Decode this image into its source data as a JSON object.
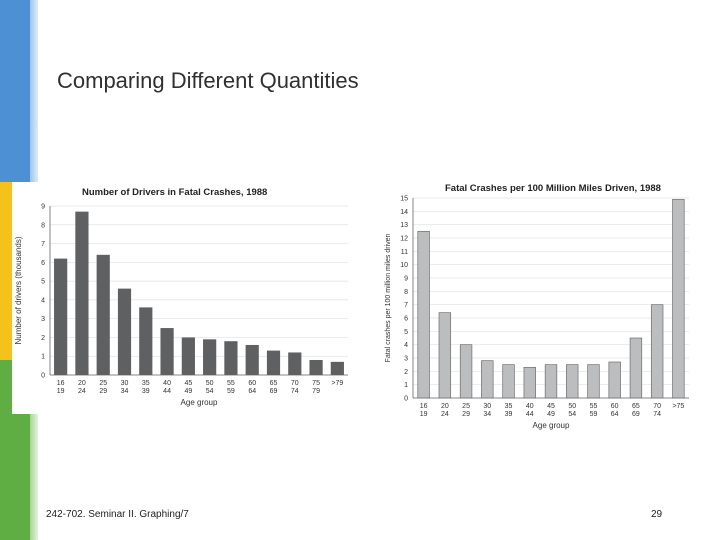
{
  "slide": {
    "title": "Comparing Different Quantities",
    "footer_left": "242-702. Seminar II. Graphing/7",
    "page_number": "29"
  },
  "colors": {
    "band_blue": "#4d91d4",
    "band_yellow": "#f4c21b",
    "band_green": "#5fae43",
    "bar_dark": "#5f6062",
    "bar_light": "#bcbdbf"
  },
  "chart_data": [
    {
      "type": "bar",
      "title": "Number of Drivers in Fatal Crashes, 1988",
      "xlabel": "Age group",
      "ylabel": "Number of drivers (thousands)",
      "ylim": [
        0,
        9
      ],
      "yticks": [
        "0",
        "1",
        "2",
        "3",
        "4",
        "5",
        "6",
        "7",
        "8",
        "9"
      ],
      "categories": [
        [
          "16",
          "19"
        ],
        [
          "20",
          "24"
        ],
        [
          "25",
          "29"
        ],
        [
          "30",
          "34"
        ],
        [
          "35",
          "39"
        ],
        [
          "40",
          "44"
        ],
        [
          "45",
          "49"
        ],
        [
          "50",
          "54"
        ],
        [
          "55",
          "59"
        ],
        [
          "60",
          "64"
        ],
        [
          "65",
          "69"
        ],
        [
          "70",
          "74"
        ],
        [
          "75",
          "79"
        ],
        [
          ">79",
          ""
        ]
      ],
      "values": [
        6.2,
        8.7,
        6.4,
        4.6,
        3.6,
        2.5,
        2.0,
        1.9,
        1.8,
        1.6,
        1.3,
        1.2,
        0.8,
        0.7
      ],
      "grid": true
    },
    {
      "type": "bar",
      "title": "Fatal Crashes per 100 Million Miles Driven, 1988",
      "xlabel": "Age group",
      "ylabel": "Fatal crashes per 100 million miles driven",
      "ylim": [
        0,
        15
      ],
      "yticks": [
        "0",
        "1",
        "2",
        "3",
        "4",
        "5",
        "6",
        "7",
        "8",
        "9",
        "10",
        "11",
        "12",
        "13",
        "14",
        "15"
      ],
      "categories": [
        [
          "16",
          "19"
        ],
        [
          "20",
          "24"
        ],
        [
          "25",
          "29"
        ],
        [
          "30",
          "34"
        ],
        [
          "35",
          "39"
        ],
        [
          "40",
          "44"
        ],
        [
          "45",
          "49"
        ],
        [
          "50",
          "54"
        ],
        [
          "55",
          "59"
        ],
        [
          "60",
          "64"
        ],
        [
          "65",
          "69"
        ],
        [
          "70",
          "74"
        ],
        [
          ">75",
          ""
        ]
      ],
      "values": [
        12.5,
        6.4,
        4.0,
        2.8,
        2.5,
        2.3,
        2.5,
        2.5,
        2.5,
        2.7,
        4.5,
        7.0,
        14.9
      ],
      "grid": true
    }
  ]
}
